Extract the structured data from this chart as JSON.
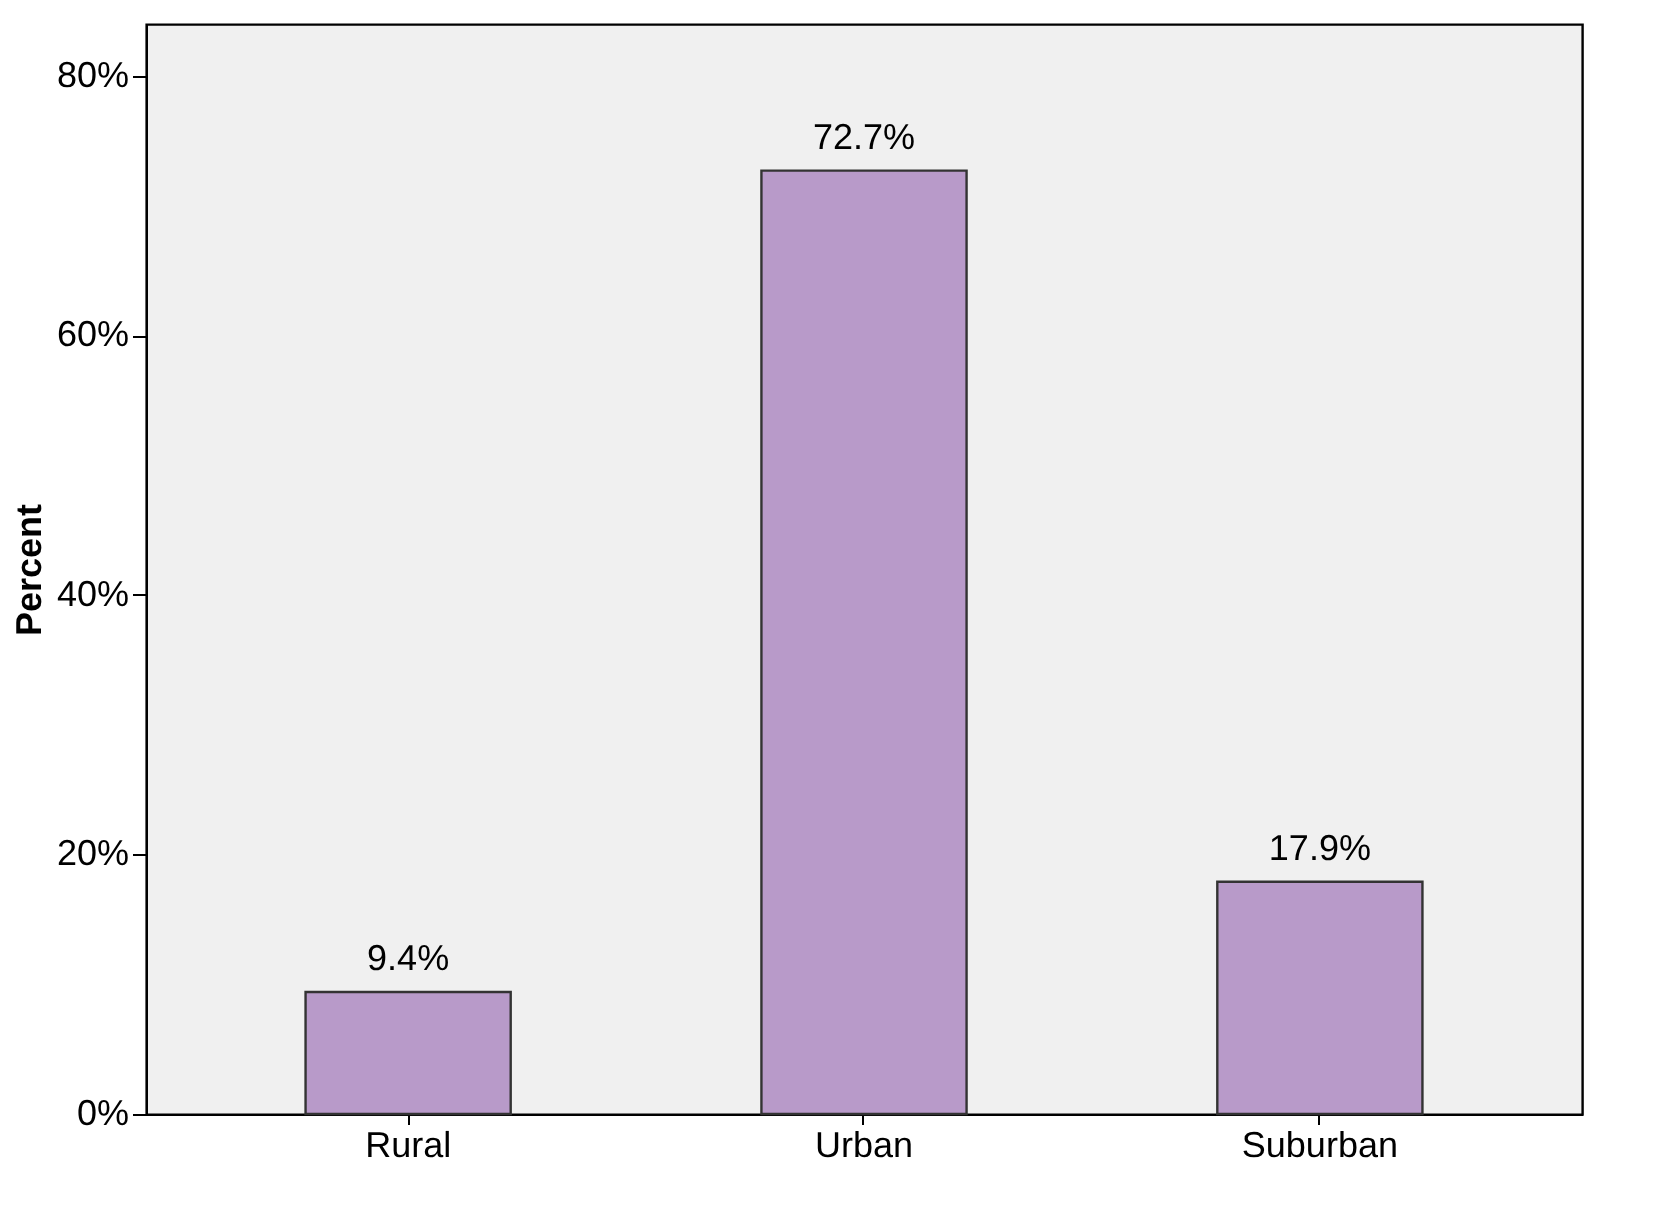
{
  "chart_data": {
    "type": "bar",
    "ylabel": "Percent",
    "categories": [
      "Rural",
      "Urban",
      "Suburban"
    ],
    "values": [
      9.4,
      72.7,
      17.9
    ],
    "value_labels": [
      "9.4%",
      "72.7%",
      "17.9%"
    ],
    "color": "#b89ac9",
    "ylim": [
      0,
      84
    ],
    "yticks": [
      {
        "value": 0,
        "label": "0%"
      },
      {
        "value": 20,
        "label": "20%"
      },
      {
        "value": 40,
        "label": "40%"
      },
      {
        "value": 60,
        "label": "60%"
      },
      {
        "value": 80,
        "label": "80%"
      }
    ],
    "grid": false
  }
}
